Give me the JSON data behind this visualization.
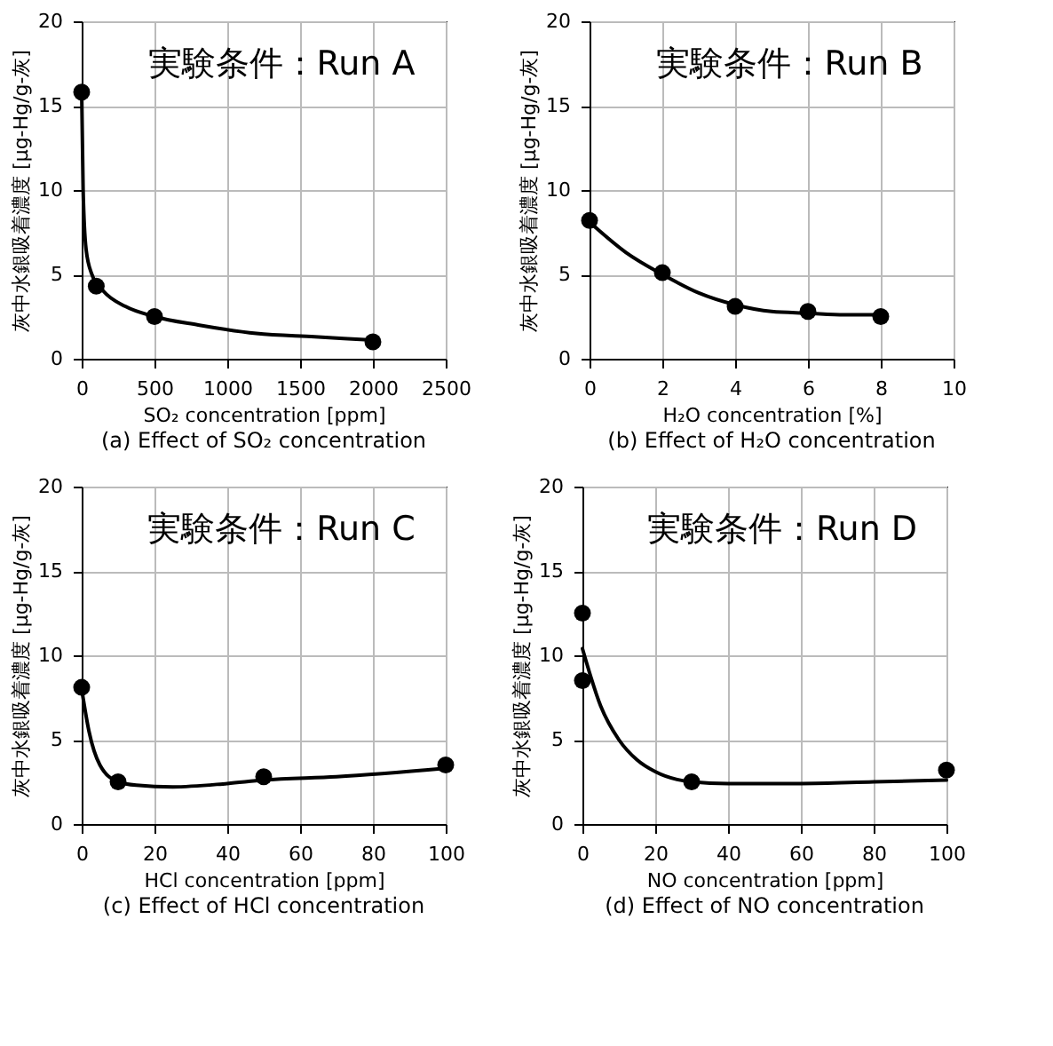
{
  "chart_data": [
    {
      "type": "scatter",
      "title": "実験条件：Run A",
      "xlabel": "SO₂ concentration [ppm]",
      "ylabel": "灰中水銀吸着濃度 [μg-Hg/g-灰]",
      "annotations": [
        "(a) Effect of SO₂ concentration"
      ],
      "xlim": [
        0,
        2500
      ],
      "xticks": [
        0,
        500,
        1000,
        1500,
        2000,
        2500
      ],
      "ylim": [
        0,
        20
      ],
      "yticks": [
        0,
        5,
        10,
        15,
        20
      ],
      "grid": true,
      "marker": "circle",
      "series": [
        {
          "type": "line",
          "color": "#000000",
          "x": [
            0,
            10,
            30,
            70,
            150,
            300,
            500,
            800,
            1200,
            1600,
            2000
          ],
          "values": [
            15.8,
            10,
            6.5,
            5,
            4,
            3.1,
            2.5,
            2.0,
            1.5,
            1.3,
            1.1
          ],
          "marker": "none"
        },
        {
          "type": "scatter",
          "color": "#000000",
          "x": [
            0,
            100,
            500,
            2000
          ],
          "values": [
            15.8,
            4.3,
            2.5,
            1.0
          ]
        }
      ]
    },
    {
      "type": "scatter",
      "title": "実験条件：Run B",
      "xlabel": "H₂O concentration [%]",
      "ylabel": "灰中水銀吸着濃度 [μg-Hg/g-灰]",
      "annotations": [
        "(b) Effect of H₂O concentration"
      ],
      "xlim": [
        0,
        10
      ],
      "xticks": [
        0,
        2,
        4,
        6,
        8,
        10
      ],
      "ylim": [
        0,
        20
      ],
      "yticks": [
        0,
        5,
        10,
        15,
        20
      ],
      "grid": true,
      "marker": "circle",
      "series": [
        {
          "type": "line",
          "color": "#000000",
          "x": [
            0,
            1,
            2,
            3,
            4,
            5,
            6,
            7,
            8
          ],
          "values": [
            8.1,
            6.3,
            5.0,
            3.9,
            3.2,
            2.8,
            2.7,
            2.6,
            2.6
          ],
          "marker": "none"
        },
        {
          "type": "scatter",
          "color": "#000000",
          "x": [
            0,
            2,
            4,
            6,
            8
          ],
          "values": [
            8.2,
            5.1,
            3.1,
            2.8,
            2.5
          ]
        }
      ]
    },
    {
      "type": "scatter",
      "title": "実験条件：Run C",
      "xlabel": "HCl concentration [ppm]",
      "ylabel": "灰中水銀吸着濃度 [μg-Hg/g-灰]",
      "annotations": [
        "(c) Effect of HCl concentration"
      ],
      "xlim": [
        0,
        100
      ],
      "xticks": [
        0,
        20,
        40,
        60,
        80,
        100
      ],
      "ylim": [
        0,
        20
      ],
      "yticks": [
        0,
        5,
        10,
        15,
        20
      ],
      "grid": true,
      "marker": "circle",
      "series": [
        {
          "type": "line",
          "color": "#000000",
          "x": [
            0,
            2,
            5,
            10,
            15,
            25,
            40,
            50,
            70,
            100
          ],
          "values": [
            8.0,
            5.5,
            3.5,
            2.5,
            2.3,
            2.2,
            2.4,
            2.6,
            2.8,
            3.3
          ],
          "marker": "none"
        },
        {
          "type": "scatter",
          "color": "#000000",
          "x": [
            0,
            10,
            50,
            100
          ],
          "values": [
            8.1,
            2.5,
            2.8,
            3.5
          ]
        }
      ]
    },
    {
      "type": "scatter",
      "title": "実験条件：Run D",
      "xlabel": "NO concentration [ppm]",
      "ylabel": "灰中水銀吸着濃度 [μg-Hg/g-灰]",
      "annotations": [
        "(d) Effect of NO concentration"
      ],
      "xlim": [
        0,
        100
      ],
      "xticks": [
        0,
        20,
        40,
        60,
        80,
        100
      ],
      "ylim": [
        0,
        20
      ],
      "yticks": [
        0,
        5,
        10,
        15,
        20
      ],
      "grid": true,
      "marker": "circle",
      "series": [
        {
          "type": "line",
          "color": "#000000",
          "x": [
            0,
            5,
            10,
            15,
            20,
            30,
            40,
            60,
            80,
            100
          ],
          "values": [
            10.4,
            7,
            5,
            3.8,
            3.1,
            2.5,
            2.4,
            2.4,
            2.5,
            2.6
          ],
          "marker": "none"
        },
        {
          "type": "scatter",
          "color": "#000000",
          "x": [
            0,
            0,
            30,
            100
          ],
          "values": [
            12.5,
            8.5,
            2.5,
            3.2
          ]
        }
      ]
    }
  ]
}
